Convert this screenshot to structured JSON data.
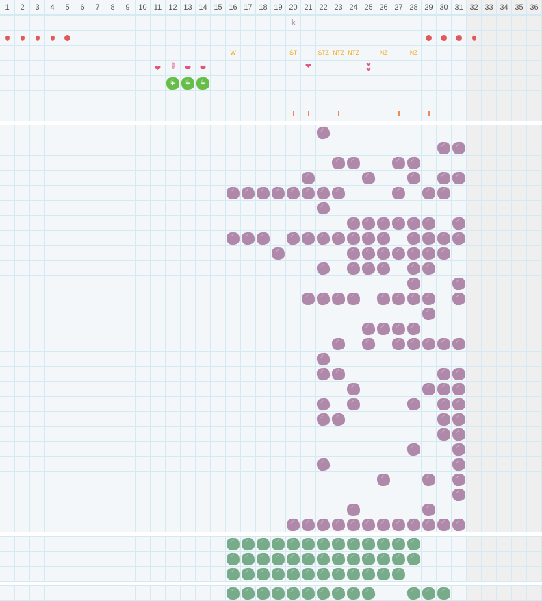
{
  "days": [
    1,
    2,
    3,
    4,
    5,
    6,
    7,
    8,
    9,
    10,
    11,
    12,
    13,
    14,
    15,
    16,
    17,
    18,
    19,
    20,
    21,
    22,
    23,
    24,
    25,
    26,
    27,
    28,
    29,
    30,
    31,
    32,
    33,
    34,
    35,
    36
  ],
  "active_days": 31,
  "colors": {
    "purple": "#b088aa",
    "green": "#78ab8a",
    "lime": "#66bd47",
    "red": "#e05a5a",
    "pink": "#e0567f",
    "orange": "#f4a81d",
    "disabled": "#efefef"
  },
  "top_rows": [
    [
      {
        "day": 20,
        "icon": "k",
        "text": "k"
      }
    ],
    [
      {
        "day": 1,
        "icon": "drop"
      },
      {
        "day": 2,
        "icon": "drop"
      },
      {
        "day": 3,
        "icon": "drop"
      },
      {
        "day": 4,
        "icon": "drop"
      },
      {
        "day": 5,
        "icon": "dot"
      },
      {
        "day": 29,
        "icon": "dot"
      },
      {
        "day": 30,
        "icon": "dot"
      },
      {
        "day": 31,
        "icon": "dot"
      },
      {
        "day": 32,
        "icon": "drop"
      }
    ],
    [
      {
        "day": 16,
        "icon": "label",
        "text": "W"
      },
      {
        "day": 20,
        "icon": "label",
        "text": "ŚT"
      },
      {
        "day": 22,
        "icon": "label",
        "text": "ŚTZ"
      },
      {
        "day": 23,
        "icon": "label",
        "text": "NTZ"
      },
      {
        "day": 24,
        "icon": "label",
        "text": "NTZ"
      },
      {
        "day": 26,
        "icon": "label",
        "text": "NZ"
      },
      {
        "day": 28,
        "icon": "label",
        "text": "NZ"
      }
    ],
    [
      {
        "day": 11,
        "icon": "heart"
      },
      {
        "day": 12,
        "icon": "pen"
      },
      {
        "day": 13,
        "icon": "heart"
      },
      {
        "day": 14,
        "icon": "heart"
      },
      {
        "day": 21,
        "icon": "heart"
      },
      {
        "day": 25,
        "icon": "double-heart"
      }
    ],
    [
      {
        "day": 12,
        "icon": "lime"
      },
      {
        "day": 13,
        "icon": "lime"
      },
      {
        "day": 14,
        "icon": "lime"
      }
    ],
    [],
    [
      {
        "day": 20,
        "icon": "tick"
      },
      {
        "day": 21,
        "icon": "tick"
      },
      {
        "day": 23,
        "icon": "tick"
      },
      {
        "day": 27,
        "icon": "tick"
      },
      {
        "day": 29,
        "icon": "tick"
      }
    ]
  ],
  "purple_rows": [
    [
      22
    ],
    [
      30,
      31
    ],
    [
      23,
      24,
      27,
      28
    ],
    [
      21,
      25,
      28,
      30,
      31
    ],
    [
      16,
      17,
      18,
      19,
      20,
      21,
      22,
      23,
      27,
      29,
      30
    ],
    [
      22
    ],
    [
      24,
      25,
      26,
      27,
      28,
      29,
      31
    ],
    [
      16,
      17,
      18,
      20,
      21,
      22,
      23,
      24,
      25,
      26,
      28,
      29,
      30,
      31
    ],
    [
      19,
      24,
      25,
      26,
      27,
      28,
      29,
      30
    ],
    [
      22,
      24,
      25,
      26,
      28,
      29
    ],
    [
      28,
      31
    ],
    [
      21,
      22,
      23,
      24,
      26,
      27,
      28,
      29,
      31
    ],
    [
      29
    ],
    [
      25,
      26,
      27,
      28
    ],
    [
      23,
      25,
      27,
      28,
      29,
      30,
      31
    ],
    [
      22
    ],
    [
      22,
      23,
      30,
      31
    ],
    [
      24,
      29,
      30,
      31
    ],
    [
      22,
      24,
      28,
      30,
      31
    ],
    [
      22,
      23,
      30,
      31
    ],
    [
      30,
      31
    ],
    [
      28,
      31
    ],
    [
      22,
      31
    ],
    [
      26,
      29,
      31
    ],
    [
      31
    ],
    [
      24,
      29
    ],
    [
      20,
      21,
      22,
      23,
      24,
      25,
      26,
      27,
      28,
      29,
      30,
      31
    ]
  ],
  "green_rows": [
    [
      16,
      17,
      18,
      19,
      20,
      21,
      22,
      23,
      24,
      25,
      26,
      27,
      28
    ],
    [
      16,
      17,
      18,
      19,
      20,
      21,
      22,
      23,
      24,
      25,
      26,
      27,
      28
    ],
    [
      16,
      17,
      18,
      19,
      20,
      21,
      22,
      23,
      24,
      25,
      26,
      27
    ]
  ],
  "last_rows": [
    [
      16,
      17,
      18,
      19,
      20,
      21,
      22,
      23,
      24,
      25,
      28,
      29,
      30
    ]
  ]
}
